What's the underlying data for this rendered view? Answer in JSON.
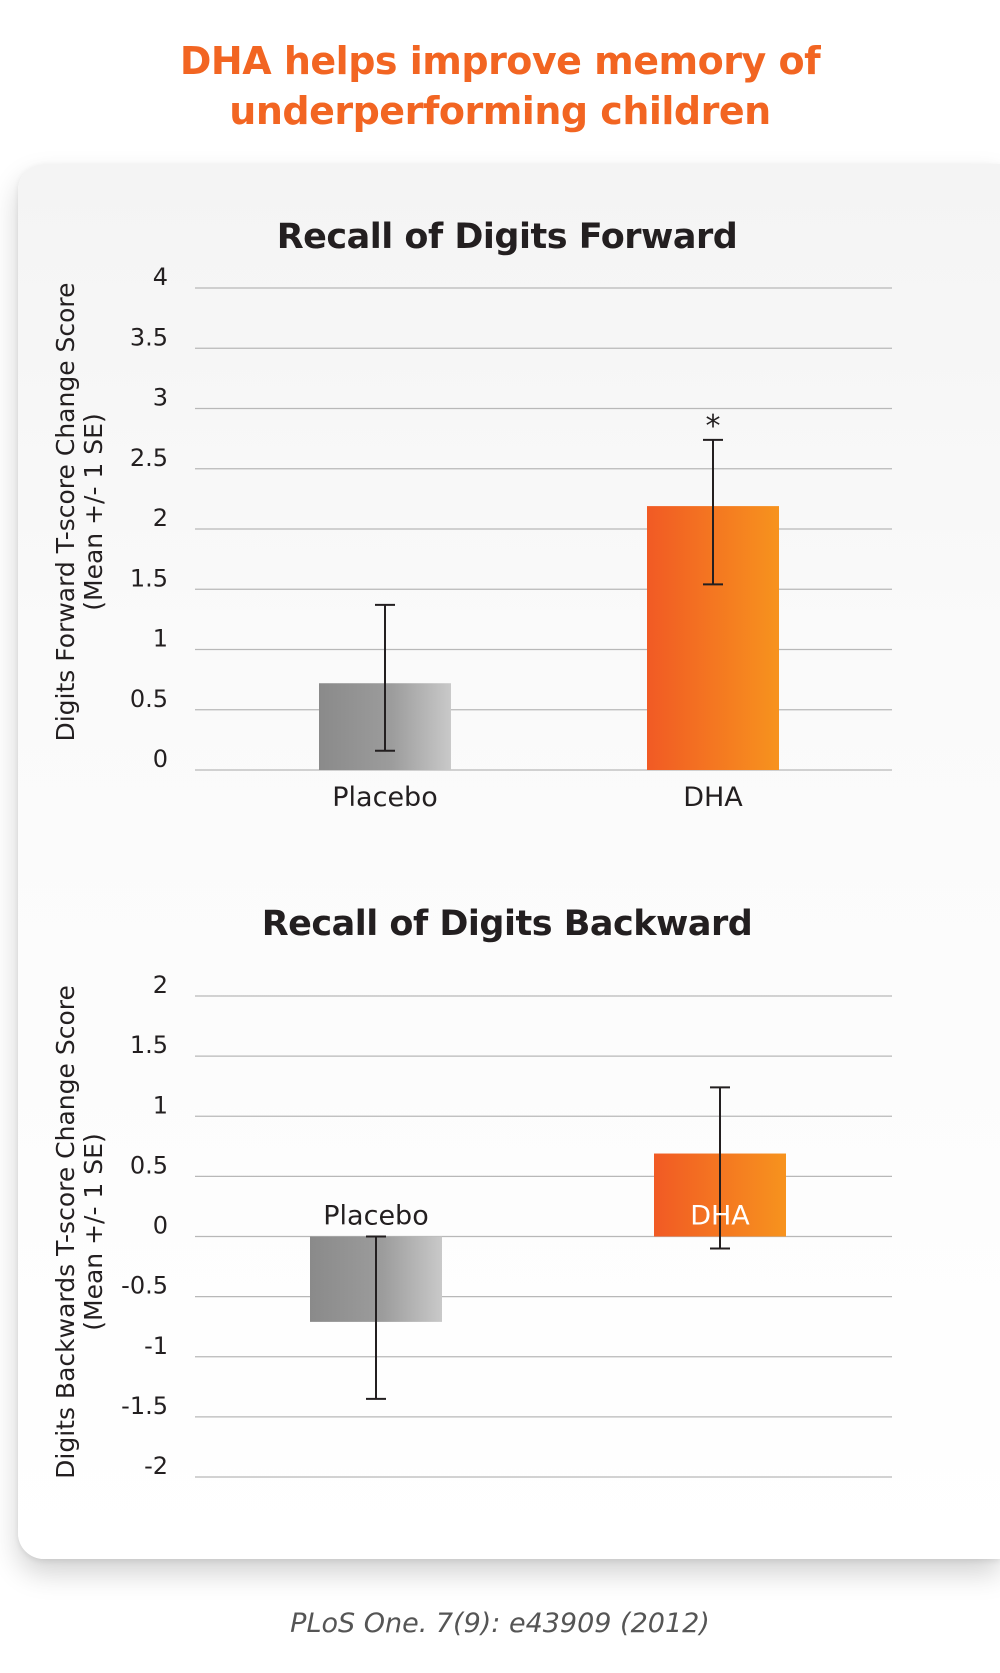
{
  "headline": {
    "line1": "DHA helps improve memory of",
    "line2": "underperforming children"
  },
  "citation": "PLoS One. 7(9): e43909 (2012)",
  "colors": {
    "headline": "#f26522",
    "placebo": "#8f8f8f",
    "dha": "#f26522",
    "grid": "#b8b8b8"
  },
  "chart_data": [
    {
      "type": "bar",
      "title": "Recall of Digits Forward",
      "ylabel_line1": "Digits Forward T-score Change Score",
      "ylabel_line2": "(Mean +/- 1 SE)",
      "categories": [
        "Placebo",
        "DHA"
      ],
      "values": [
        0.72,
        2.19
      ],
      "error_low": [
        0.16,
        1.54
      ],
      "error_high": [
        1.37,
        2.74
      ],
      "significance": [
        "",
        "*"
      ],
      "ylim": [
        0,
        4
      ],
      "yticks": [
        "0",
        "0.5",
        "1",
        "1.5",
        "2",
        "2.5",
        "3",
        "3.5",
        "4"
      ],
      "grid": true,
      "category_label_position": "below-axis"
    },
    {
      "type": "bar",
      "title": "Recall of Digits Backward",
      "ylabel_line1": "Digits Backwards T-score Change Score",
      "ylabel_line2": "(Mean +/- 1 SE)",
      "categories": [
        "Placebo",
        "DHA"
      ],
      "values": [
        -0.71,
        0.69
      ],
      "error_low": [
        -1.35,
        -0.1
      ],
      "error_high": [
        0.0,
        1.24
      ],
      "significance": [
        "",
        ""
      ],
      "ylim": [
        -2,
        2
      ],
      "yticks": [
        "-2",
        "-1.5",
        "-1",
        "-0.5",
        "0",
        "0.5",
        "1",
        "1.5",
        "2"
      ],
      "grid": true,
      "category_label_position": "at-zero-line"
    }
  ]
}
